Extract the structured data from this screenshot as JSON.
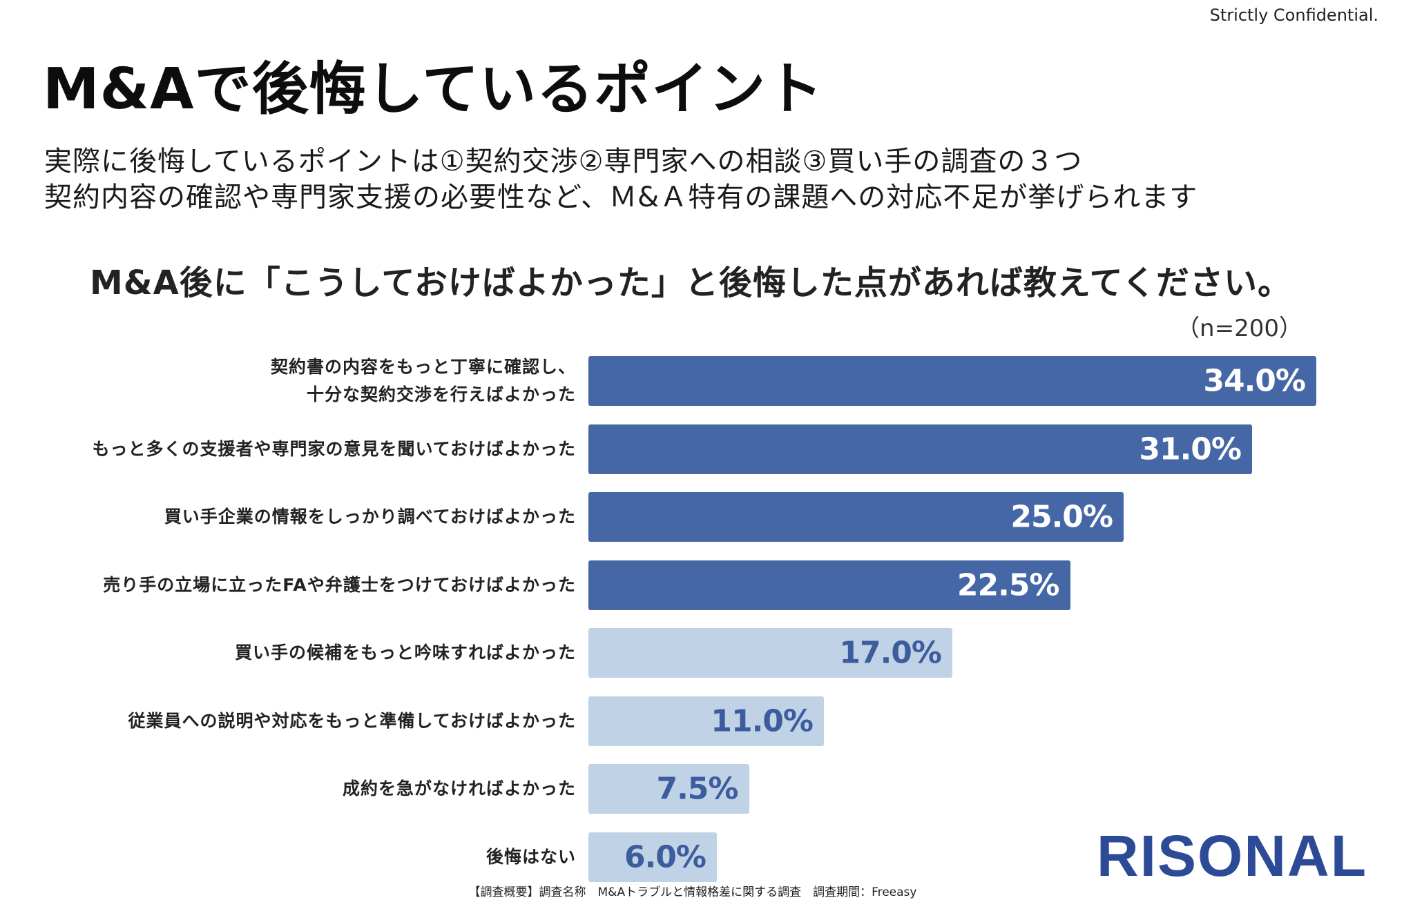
{
  "header": {
    "confidential": "Strictly Confidential.",
    "title": "M&Aで後悔しているポイント",
    "subtitle_lines": [
      "実際に後悔しているポイントは①契約交渉②専門家への相談③買い手の調査の３つ",
      "契約内容の確認や専門家支援の必要性など、Ｍ&Ａ特有の課題への対応不足が挙げられます"
    ]
  },
  "chart_data": {
    "type": "bar",
    "orientation": "horizontal",
    "title": "M&A後に「こうしておけばよかった」と後悔した点があれば教えてください。",
    "note": "（n=200）",
    "categories": [
      [
        "契約書の内容をもっと丁寧に確認し、",
        "十分な契約交渉を行えばよかった"
      ],
      [
        "もっと多くの支援者や専門家の意見を聞いておけばよかった"
      ],
      [
        "買い手企業の情報をしっかり調べておけばよかった"
      ],
      [
        "売り手の立場に立ったFAや弁護士をつけておけばよかった"
      ],
      [
        "買い手の候補をもっと吟味すればよかった"
      ],
      [
        "従業員への説明や対応をもっと準備しておけばよかった"
      ],
      [
        "成約を急がなければよかった"
      ],
      [
        "後悔はない"
      ]
    ],
    "values": [
      34.0,
      31.0,
      25.0,
      22.5,
      17.0,
      11.0,
      7.5,
      6.0
    ],
    "value_labels": [
      "34.0%",
      "31.0%",
      "25.0%",
      "22.5%",
      "17.0%",
      "11.0%",
      "7.5%",
      "6.0%"
    ],
    "highlight_count": 4,
    "xlim": [
      0,
      34.0
    ],
    "colors": {
      "highlight_bar": "#4567a6",
      "highlight_text": "#ffffff",
      "normal_bar": "#bfd2e6",
      "normal_text": "#3d5c9e"
    }
  },
  "logo": "RISONAL",
  "footer": "【調査概要】調査名称　M&Aトラブルと情報格差に関する調査　調査期間：Freeasy"
}
